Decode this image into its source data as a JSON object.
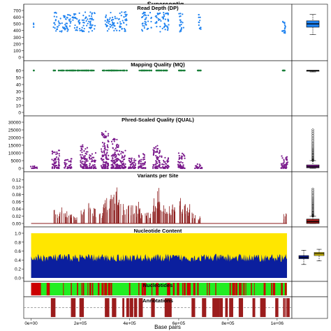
{
  "figure_title": "Supercontig",
  "chart_data": [
    {
      "type": "scatter",
      "title": "Read Depth (DP)",
      "y_ticks": [
        "0",
        "100",
        "200",
        "300",
        "400",
        "500",
        "600",
        "700"
      ],
      "ylim": [
        0,
        700
      ],
      "color": "#1e82f0",
      "blocks": [
        [
          10000,
          10500,
          450,
          520
        ],
        [
          90000,
          260000,
          380,
          680
        ],
        [
          300000,
          390000,
          380,
          680
        ],
        [
          450000,
          490000,
          380,
          680
        ],
        [
          505000,
          560000,
          380,
          680
        ],
        [
          600000,
          620000,
          380,
          680
        ],
        [
          680000,
          690000,
          380,
          680
        ],
        [
          1020000,
          1035000,
          360,
          560
        ]
      ],
      "boxplot": {
        "min": 340,
        "q1": 450,
        "median": 500,
        "q3": 545,
        "max": 640,
        "whisker_cap_top": 650
      }
    },
    {
      "type": "scatter",
      "title": "Mapping Quality (MQ)",
      "y_ticks": [
        "0",
        "10",
        "20",
        "30",
        "40",
        "50",
        "60"
      ],
      "ylim": [
        0,
        65
      ],
      "color": "#1a7f3a",
      "points_x_ranges": [
        [
          10000,
          12000
        ],
        [
          90000,
          260000
        ],
        [
          290000,
          390000
        ],
        [
          440000,
          490000
        ],
        [
          505000,
          560000
        ],
        [
          600000,
          625000
        ],
        [
          675000,
          690000
        ],
        [
          1020000,
          1035000
        ]
      ],
      "value": 60,
      "boxplot": {
        "min": 58,
        "q1": 59.5,
        "median": 60,
        "q3": 60,
        "max": 60
      }
    },
    {
      "type": "scatter",
      "title": "Phred-Scaled Quality (QUAL)",
      "y_ticks": [
        "0",
        "5000",
        "10000",
        "15000",
        "20000",
        "25000",
        "30000"
      ],
      "ylim": [
        0,
        30000
      ],
      "color": "#7a1a8c",
      "clusters": [
        [
          10000,
          0,
          2000
        ],
        [
          100000,
          0,
          12000
        ],
        [
          150000,
          0,
          7000
        ],
        [
          215000,
          0,
          16000
        ],
        [
          250000,
          0,
          10000
        ],
        [
          300000,
          0,
          24000
        ],
        [
          340000,
          0,
          20000
        ],
        [
          370000,
          0,
          12000
        ],
        [
          410000,
          0,
          9000
        ],
        [
          450000,
          0,
          10000
        ],
        [
          510000,
          0,
          15000
        ],
        [
          545000,
          0,
          8000
        ],
        [
          610000,
          0,
          10000
        ],
        [
          680000,
          0,
          3000
        ],
        [
          1030000,
          0,
          8000
        ]
      ],
      "boxplot": {
        "min": 0,
        "q1": 300,
        "median": 1000,
        "q3": 2200,
        "max": 5000,
        "outliers_top": 25000
      }
    },
    {
      "type": "bar",
      "title": "Variants per Site",
      "y_ticks": [
        "0.00",
        "0.02",
        "0.04",
        "0.06",
        "0.08",
        "0.10",
        "0.12"
      ],
      "ylim": [
        0,
        0.125
      ],
      "color": "#8b1a1a",
      "spikes": [
        [
          100000,
          0.04
        ],
        [
          120000,
          0.05
        ],
        [
          140000,
          0.04
        ],
        [
          160000,
          0.03
        ],
        [
          180000,
          0.025
        ],
        [
          210000,
          0.045
        ],
        [
          240000,
          0.06
        ],
        [
          255000,
          0.045
        ],
        [
          285000,
          0.03
        ],
        [
          300000,
          0.065
        ],
        [
          315000,
          0.07
        ],
        [
          330000,
          0.085
        ],
        [
          345000,
          0.115
        ],
        [
          360000,
          0.07
        ],
        [
          380000,
          0.055
        ],
        [
          400000,
          0.055
        ],
        [
          420000,
          0.05
        ],
        [
          435000,
          0.065
        ],
        [
          445000,
          0.035
        ],
        [
          465000,
          0.03
        ],
        [
          480000,
          0.035
        ],
        [
          495000,
          0.035
        ],
        [
          505000,
          0.09
        ],
        [
          515000,
          0.11
        ],
        [
          530000,
          0.065
        ],
        [
          545000,
          0.07
        ],
        [
          560000,
          0.05
        ],
        [
          575000,
          0.055
        ],
        [
          590000,
          0.045
        ],
        [
          610000,
          0.07
        ],
        [
          625000,
          0.06
        ],
        [
          640000,
          0.055
        ],
        [
          660000,
          0.035
        ],
        [
          680000,
          0.02
        ],
        [
          1030000,
          0.03
        ]
      ],
      "boxplot": {
        "min": 0,
        "q1": 0,
        "median": 0.005,
        "q3": 0.012,
        "max": 0.02,
        "outliers_top": 0.095
      }
    },
    {
      "type": "area",
      "title": "Nucleotide Content",
      "y_ticks": [
        "0.0",
        "0.2",
        "0.4",
        "0.6",
        "0.8",
        "1.0"
      ],
      "ylim": [
        0,
        1
      ],
      "series": [
        {
          "color": "#0b1f9e",
          "mean": 0.45
        },
        {
          "color": "#ffe600",
          "mean": 0.55
        }
      ],
      "boxplots": [
        {
          "color": "#0b1f9e",
          "min": 0.3,
          "q1": 0.43,
          "median": 0.46,
          "q3": 0.5,
          "max": 0.62
        },
        {
          "color": "#ffe600",
          "min": 0.38,
          "q1": 0.5,
          "median": 0.54,
          "q3": 0.57,
          "max": 0.64
        }
      ]
    },
    {
      "type": "bar",
      "title": "Nucleotides",
      "colors": {
        "background": "#22ee22",
        "marks": "#cc0000"
      }
    },
    {
      "type": "bar",
      "title": "Annotations",
      "colors": {
        "bars": "#9b1c1c",
        "dashed": "#888888"
      }
    }
  ],
  "x_axis": {
    "ticks": [
      "0e+00",
      "2e+05",
      "4e+05",
      "6e+05",
      "8e+05",
      "1e+06"
    ],
    "values": [
      0,
      200000,
      400000,
      600000,
      800000,
      1000000
    ],
    "label": "Base pairs",
    "xlim": [
      -30000,
      1060000
    ]
  }
}
